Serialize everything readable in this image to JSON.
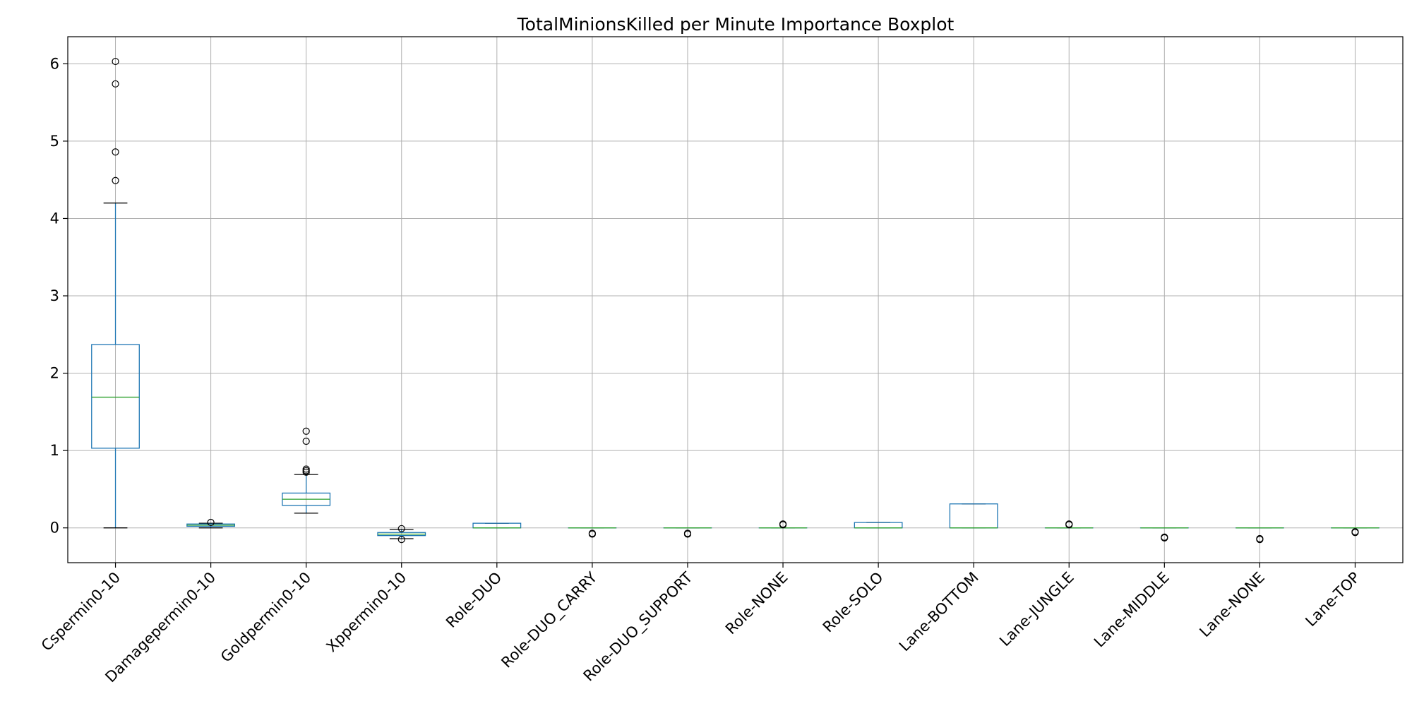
{
  "chart_data": {
    "type": "boxplot",
    "title": "TotalMinionsKilled per Minute Importance Boxplot",
    "xlabel": "",
    "ylabel": "",
    "ylim": [
      -0.45,
      6.35
    ],
    "yticks": [
      0,
      1,
      2,
      3,
      4,
      5,
      6
    ],
    "grid": true,
    "colors": {
      "box": "#1f77b4",
      "median": "#2ca02c",
      "whisker": "#1f77b4",
      "cap": "#000000",
      "flier": "#000000"
    },
    "boxes": [
      {
        "label": "Cspermin0-10",
        "min": 0.0,
        "q1": 1.03,
        "median": 1.69,
        "q3": 2.37,
        "max": 4.2,
        "fliers": [
          4.49,
          4.86,
          5.74,
          6.03
        ]
      },
      {
        "label": "Damagepermin0-10",
        "min": 0.0,
        "q1": 0.02,
        "median": 0.035,
        "q3": 0.05,
        "max": 0.06,
        "fliers": [
          0.07
        ]
      },
      {
        "label": "Goldpermin0-10",
        "min": 0.19,
        "q1": 0.29,
        "median": 0.37,
        "q3": 0.45,
        "max": 0.69,
        "fliers": [
          0.72,
          0.74,
          0.76,
          1.12,
          1.25
        ]
      },
      {
        "label": "Xppermin0-10",
        "min": -0.14,
        "q1": -0.1,
        "median": -0.08,
        "q3": -0.06,
        "max": -0.02,
        "fliers": [
          -0.01,
          -0.15
        ]
      },
      {
        "label": "Role-DUO",
        "min": 0.0,
        "q1": 0.0,
        "median": 0.0,
        "q3": 0.06,
        "max": 0.06,
        "fliers": []
      },
      {
        "label": "Role-DUO_CARRY",
        "min": 0.0,
        "q1": 0.0,
        "median": 0.0,
        "q3": 0.0,
        "max": 0.0,
        "fliers": [
          -0.07,
          -0.08
        ]
      },
      {
        "label": "Role-DUO_SUPPORT",
        "min": 0.0,
        "q1": 0.0,
        "median": 0.0,
        "q3": 0.0,
        "max": 0.0,
        "fliers": [
          -0.07,
          -0.08
        ]
      },
      {
        "label": "Role-NONE",
        "min": 0.0,
        "q1": 0.0,
        "median": 0.0,
        "q3": 0.0,
        "max": 0.0,
        "fliers": [
          0.04,
          0.05
        ]
      },
      {
        "label": "Role-SOLO",
        "min": 0.0,
        "q1": 0.0,
        "median": 0.0,
        "q3": 0.07,
        "max": 0.07,
        "fliers": []
      },
      {
        "label": "Lane-BOTTOM",
        "min": 0.0,
        "q1": 0.0,
        "median": 0.0,
        "q3": 0.31,
        "max": 0.31,
        "fliers": []
      },
      {
        "label": "Lane-JUNGLE",
        "min": 0.0,
        "q1": 0.0,
        "median": 0.0,
        "q3": 0.0,
        "max": 0.0,
        "fliers": [
          0.04,
          0.05
        ]
      },
      {
        "label": "Lane-MIDDLE",
        "min": 0.0,
        "q1": 0.0,
        "median": 0.0,
        "q3": 0.0,
        "max": 0.0,
        "fliers": [
          -0.12,
          -0.13
        ]
      },
      {
        "label": "Lane-NONE",
        "min": 0.0,
        "q1": 0.0,
        "median": 0.0,
        "q3": 0.0,
        "max": 0.0,
        "fliers": [
          -0.14,
          -0.15
        ]
      },
      {
        "label": "Lane-TOP",
        "min": 0.0,
        "q1": 0.0,
        "median": 0.0,
        "q3": 0.0,
        "max": 0.0,
        "fliers": [
          -0.05,
          -0.06
        ]
      }
    ]
  }
}
